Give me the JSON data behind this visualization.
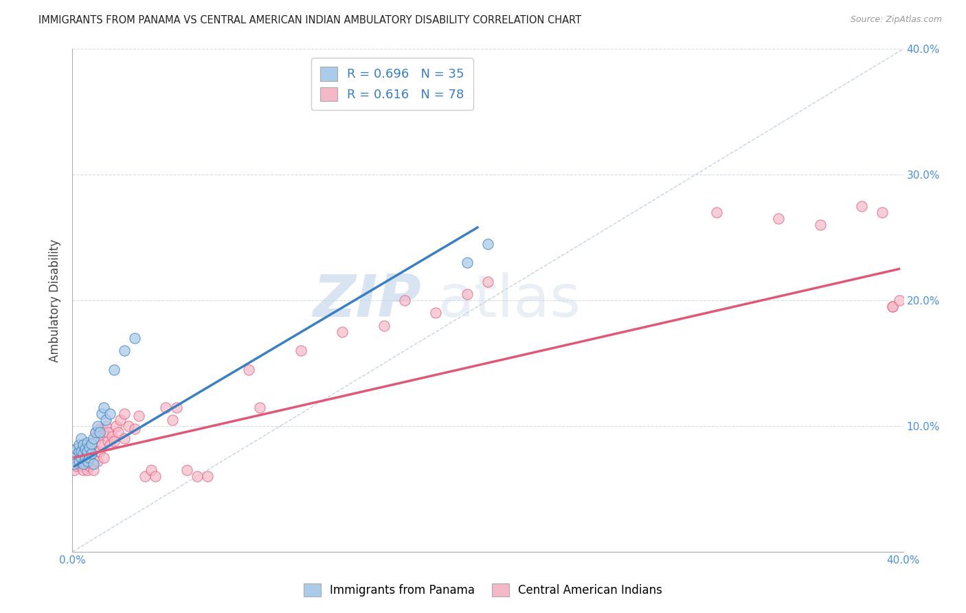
{
  "title": "IMMIGRANTS FROM PANAMA VS CENTRAL AMERICAN INDIAN AMBULATORY DISABILITY CORRELATION CHART",
  "source": "Source: ZipAtlas.com",
  "ylabel": "Ambulatory Disability",
  "xlim": [
    0.0,
    0.4
  ],
  "ylim": [
    0.0,
    0.4
  ],
  "xticks": [
    0.0,
    0.1,
    0.2,
    0.3,
    0.4
  ],
  "yticks": [
    0.0,
    0.1,
    0.2,
    0.3,
    0.4
  ],
  "xticklabels": [
    "0.0%",
    "",
    "",
    "",
    "40.0%"
  ],
  "yticklabels": [
    "",
    "",
    "",
    "",
    ""
  ],
  "right_yticklabels": [
    "",
    "10.0%",
    "20.0%",
    "30.0%",
    "40.0%"
  ],
  "color_blue": "#aacce8",
  "color_pink": "#f5b8c8",
  "color_blue_line": "#3a7fc1",
  "color_pink_line": "#e05878",
  "color_diag": "#b8c8d8",
  "watermark_zip": "ZIP",
  "watermark_atlas": "atlas",
  "blue_scatter_x": [
    0.001,
    0.002,
    0.002,
    0.003,
    0.003,
    0.003,
    0.004,
    0.004,
    0.004,
    0.005,
    0.005,
    0.005,
    0.006,
    0.006,
    0.007,
    0.007,
    0.007,
    0.008,
    0.008,
    0.009,
    0.009,
    0.01,
    0.01,
    0.011,
    0.012,
    0.013,
    0.014,
    0.015,
    0.016,
    0.018,
    0.02,
    0.025,
    0.03,
    0.19,
    0.2
  ],
  "blue_scatter_y": [
    0.07,
    0.078,
    0.082,
    0.072,
    0.08,
    0.085,
    0.075,
    0.08,
    0.09,
    0.07,
    0.078,
    0.085,
    0.075,
    0.082,
    0.072,
    0.08,
    0.087,
    0.075,
    0.083,
    0.078,
    0.086,
    0.07,
    0.09,
    0.095,
    0.1,
    0.095,
    0.11,
    0.115,
    0.105,
    0.11,
    0.145,
    0.16,
    0.17,
    0.23,
    0.245
  ],
  "pink_scatter_x": [
    0.001,
    0.001,
    0.002,
    0.002,
    0.002,
    0.003,
    0.003,
    0.003,
    0.004,
    0.004,
    0.004,
    0.004,
    0.005,
    0.005,
    0.005,
    0.006,
    0.006,
    0.007,
    0.007,
    0.007,
    0.007,
    0.008,
    0.008,
    0.008,
    0.009,
    0.009,
    0.01,
    0.01,
    0.01,
    0.011,
    0.011,
    0.012,
    0.012,
    0.013,
    0.013,
    0.014,
    0.015,
    0.015,
    0.016,
    0.017,
    0.017,
    0.018,
    0.019,
    0.02,
    0.021,
    0.022,
    0.023,
    0.025,
    0.025,
    0.027,
    0.03,
    0.032,
    0.035,
    0.038,
    0.04,
    0.045,
    0.048,
    0.05,
    0.055,
    0.06,
    0.065,
    0.085,
    0.09,
    0.11,
    0.13,
    0.15,
    0.16,
    0.175,
    0.19,
    0.2,
    0.31,
    0.34,
    0.36,
    0.38,
    0.39,
    0.395,
    0.395,
    0.398
  ],
  "pink_scatter_y": [
    0.065,
    0.075,
    0.068,
    0.075,
    0.082,
    0.07,
    0.075,
    0.08,
    0.068,
    0.074,
    0.078,
    0.082,
    0.065,
    0.072,
    0.08,
    0.07,
    0.078,
    0.065,
    0.072,
    0.078,
    0.085,
    0.068,
    0.075,
    0.082,
    0.07,
    0.078,
    0.065,
    0.073,
    0.082,
    0.088,
    0.095,
    0.072,
    0.092,
    0.08,
    0.098,
    0.085,
    0.075,
    0.095,
    0.1,
    0.088,
    0.095,
    0.085,
    0.092,
    0.088,
    0.1,
    0.095,
    0.105,
    0.09,
    0.11,
    0.1,
    0.098,
    0.108,
    0.06,
    0.065,
    0.06,
    0.115,
    0.105,
    0.115,
    0.065,
    0.06,
    0.06,
    0.145,
    0.115,
    0.16,
    0.175,
    0.18,
    0.2,
    0.19,
    0.205,
    0.215,
    0.27,
    0.265,
    0.26,
    0.275,
    0.27,
    0.195,
    0.195,
    0.2
  ],
  "blue_line_x": [
    0.001,
    0.195
  ],
  "blue_line_y": [
    0.068,
    0.258
  ],
  "pink_line_x": [
    0.001,
    0.398
  ],
  "pink_line_y": [
    0.075,
    0.225
  ]
}
